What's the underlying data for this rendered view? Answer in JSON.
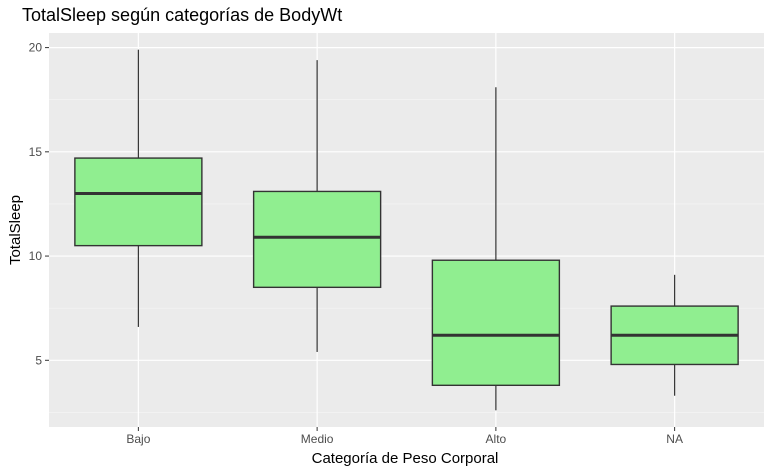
{
  "chart_data": {
    "type": "boxplot",
    "title": "TotalSleep según categorías de BodyWt",
    "xlabel": "Categoría de Peso Corporal",
    "ylabel": "TotalSleep",
    "categories": [
      "Bajo",
      "Medio",
      "Alto",
      "NA"
    ],
    "boxes": [
      {
        "category": "Bajo",
        "min": 6.6,
        "q1": 10.5,
        "median": 13.0,
        "q3": 14.7,
        "max": 19.9
      },
      {
        "category": "Medio",
        "min": 5.4,
        "q1": 8.5,
        "median": 10.9,
        "q3": 13.1,
        "max": 19.4
      },
      {
        "category": "Alto",
        "min": 2.6,
        "q1": 3.8,
        "median": 6.2,
        "q3": 9.8,
        "max": 18.1
      },
      {
        "category": "NA",
        "min": 3.3,
        "q1": 4.8,
        "median": 6.2,
        "q3": 7.6,
        "max": 9.1
      }
    ],
    "yticks": [
      5,
      10,
      15,
      20
    ],
    "ylim": [
      1.8,
      20.7
    ],
    "grid": true,
    "colors": {
      "panel_background": "#ebebeb",
      "grid_major": "#ffffff",
      "box_fill": "#90ee90",
      "box_stroke": "#333333"
    }
  }
}
